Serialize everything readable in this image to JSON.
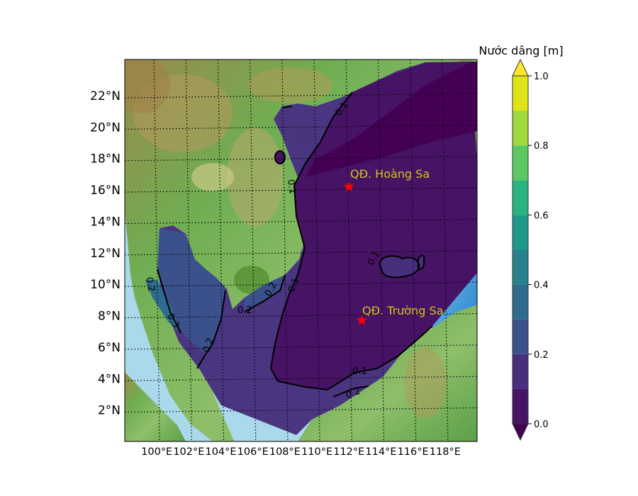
{
  "figure": {
    "map": {
      "extent_lon": [
        98,
        120
      ],
      "extent_lat": [
        0,
        24
      ],
      "lat_ticks": [
        "22°N",
        "20°N",
        "18°N",
        "16°N",
        "14°N",
        "12°N",
        "10°N",
        "8°N",
        "6°N",
        "4°N",
        "2°N"
      ],
      "lon_ticks": [
        "100°E",
        "102°E",
        "104°E",
        "106°E",
        "108°E",
        "110°E",
        "112°E",
        "114°E",
        "116°E",
        "118°E"
      ],
      "gridlines": "dotted",
      "background": "shaded relief terrain"
    },
    "colorbar": {
      "title": "Nước dâng [m]",
      "ticks": [
        "0.0",
        "0.2",
        "0.4",
        "0.6",
        "0.8",
        "1.0"
      ],
      "levels": [
        0.0,
        0.1,
        0.2,
        0.3,
        0.4,
        0.5,
        0.6,
        0.7,
        0.8,
        0.9,
        1.0
      ],
      "extend": "both",
      "colormap": "viridis",
      "colors": [
        "#471365",
        "#472f7d",
        "#3b518b",
        "#2f6b8e",
        "#27828e",
        "#1f9a8a",
        "#2ab37f",
        "#5cc863",
        "#9fd93b",
        "#dfe318"
      ],
      "under_color": "#440154",
      "over_color": "#fde725"
    },
    "contour_labels": [
      "0.1",
      "0.1",
      "0.1",
      "0.1",
      "0.1",
      "0.2",
      "0.2",
      "0.2",
      "0.2",
      "0.3",
      "0.2"
    ],
    "places": [
      {
        "name": "QĐ. Hoàng Sa",
        "lon": 112,
        "lat": 16.2,
        "marker": "star",
        "marker_color": "#ff0000"
      },
      {
        "name": "QĐ. Trường Sa",
        "lon": 112.8,
        "lat": 7.7,
        "marker": "star",
        "marker_color": "#ff0000"
      }
    ],
    "label_color": "#d4c21a"
  }
}
